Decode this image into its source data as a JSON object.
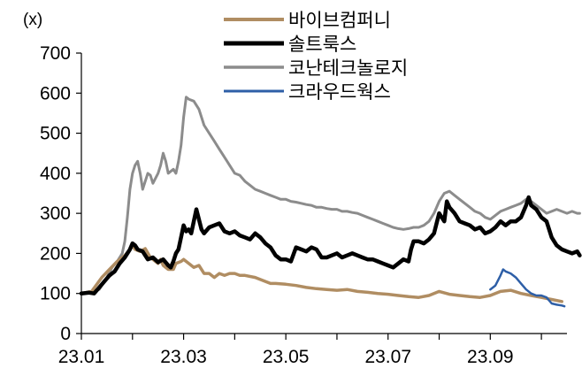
{
  "chart_data": {
    "type": "line",
    "unit_label": "(x)",
    "x_tick_labels": [
      "23.01",
      "23.03",
      "23.05",
      "23.07",
      "23.09"
    ],
    "x_tick_positions": [
      0,
      2,
      4,
      6,
      8
    ],
    "x_range": [
      0,
      9.5
    ],
    "y_tick_labels": [
      "0",
      "100",
      "200",
      "300",
      "400",
      "500",
      "600",
      "700"
    ],
    "ylim": [
      0,
      700
    ],
    "grid": false,
    "legend_position": "top-right",
    "series": [
      {
        "name": "바이브컴퍼니",
        "color": "#B08D62",
        "width": 3.5,
        "points": [
          [
            0,
            100
          ],
          [
            0.2,
            105
          ],
          [
            0.4,
            140
          ],
          [
            0.55,
            160
          ],
          [
            0.7,
            180
          ],
          [
            0.85,
            195
          ],
          [
            0.95,
            210
          ],
          [
            1.0,
            220
          ],
          [
            1.05,
            210
          ],
          [
            1.15,
            205
          ],
          [
            1.25,
            212
          ],
          [
            1.35,
            190
          ],
          [
            1.5,
            175
          ],
          [
            1.55,
            185
          ],
          [
            1.6,
            170
          ],
          [
            1.7,
            160
          ],
          [
            1.8,
            160
          ],
          [
            1.85,
            175
          ],
          [
            1.95,
            180
          ],
          [
            2.0,
            185
          ],
          [
            2.1,
            175
          ],
          [
            2.2,
            165
          ],
          [
            2.3,
            170
          ],
          [
            2.4,
            150
          ],
          [
            2.5,
            150
          ],
          [
            2.6,
            140
          ],
          [
            2.7,
            150
          ],
          [
            2.8,
            145
          ],
          [
            2.9,
            150
          ],
          [
            3.0,
            150
          ],
          [
            3.1,
            145
          ],
          [
            3.2,
            145
          ],
          [
            3.4,
            140
          ],
          [
            3.6,
            130
          ],
          [
            3.7,
            125
          ],
          [
            3.8,
            125
          ],
          [
            4.0,
            123
          ],
          [
            4.2,
            120
          ],
          [
            4.4,
            115
          ],
          [
            4.6,
            112
          ],
          [
            4.8,
            110
          ],
          [
            5.0,
            108
          ],
          [
            5.2,
            110
          ],
          [
            5.4,
            105
          ],
          [
            5.6,
            103
          ],
          [
            5.8,
            100
          ],
          [
            6.0,
            98
          ],
          [
            6.2,
            95
          ],
          [
            6.4,
            92
          ],
          [
            6.6,
            90
          ],
          [
            6.8,
            95
          ],
          [
            7.0,
            105
          ],
          [
            7.2,
            98
          ],
          [
            7.4,
            95
          ],
          [
            7.6,
            92
          ],
          [
            7.8,
            90
          ],
          [
            8.0,
            95
          ],
          [
            8.2,
            105
          ],
          [
            8.4,
            108
          ],
          [
            8.6,
            100
          ],
          [
            8.8,
            95
          ],
          [
            9.0,
            90
          ],
          [
            9.2,
            85
          ],
          [
            9.4,
            80
          ]
        ]
      },
      {
        "name": "솔트룩스",
        "color": "#000000",
        "width": 4.5,
        "points": [
          [
            0,
            100
          ],
          [
            0.15,
            102
          ],
          [
            0.25,
            100
          ],
          [
            0.35,
            115
          ],
          [
            0.45,
            130
          ],
          [
            0.55,
            145
          ],
          [
            0.65,
            155
          ],
          [
            0.75,
            175
          ],
          [
            0.85,
            190
          ],
          [
            0.95,
            210
          ],
          [
            1.0,
            225
          ],
          [
            1.05,
            220
          ],
          [
            1.1,
            210
          ],
          [
            1.2,
            205
          ],
          [
            1.3,
            185
          ],
          [
            1.4,
            190
          ],
          [
            1.5,
            178
          ],
          [
            1.6,
            185
          ],
          [
            1.7,
            170
          ],
          [
            1.75,
            165
          ],
          [
            1.8,
            180
          ],
          [
            1.85,
            200
          ],
          [
            1.9,
            210
          ],
          [
            1.95,
            240
          ],
          [
            2.0,
            270
          ],
          [
            2.05,
            255
          ],
          [
            2.1,
            260
          ],
          [
            2.15,
            250
          ],
          [
            2.2,
            280
          ],
          [
            2.25,
            310
          ],
          [
            2.3,
            285
          ],
          [
            2.35,
            260
          ],
          [
            2.4,
            250
          ],
          [
            2.5,
            265
          ],
          [
            2.6,
            270
          ],
          [
            2.7,
            275
          ],
          [
            2.8,
            255
          ],
          [
            2.9,
            250
          ],
          [
            3.0,
            255
          ],
          [
            3.1,
            245
          ],
          [
            3.2,
            240
          ],
          [
            3.3,
            235
          ],
          [
            3.4,
            250
          ],
          [
            3.5,
            240
          ],
          [
            3.6,
            225
          ],
          [
            3.7,
            215
          ],
          [
            3.8,
            195
          ],
          [
            3.9,
            185
          ],
          [
            4.0,
            185
          ],
          [
            4.1,
            180
          ],
          [
            4.2,
            215
          ],
          [
            4.3,
            210
          ],
          [
            4.4,
            205
          ],
          [
            4.5,
            215
          ],
          [
            4.6,
            210
          ],
          [
            4.7,
            190
          ],
          [
            4.8,
            190
          ],
          [
            4.9,
            195
          ],
          [
            5.0,
            200
          ],
          [
            5.1,
            190
          ],
          [
            5.2,
            195
          ],
          [
            5.3,
            200
          ],
          [
            5.4,
            195
          ],
          [
            5.5,
            190
          ],
          [
            5.6,
            185
          ],
          [
            5.7,
            185
          ],
          [
            5.8,
            180
          ],
          [
            5.9,
            175
          ],
          [
            6.0,
            170
          ],
          [
            6.1,
            165
          ],
          [
            6.2,
            175
          ],
          [
            6.3,
            185
          ],
          [
            6.4,
            180
          ],
          [
            6.45,
            210
          ],
          [
            6.5,
            230
          ],
          [
            6.6,
            230
          ],
          [
            6.7,
            225
          ],
          [
            6.8,
            235
          ],
          [
            6.9,
            250
          ],
          [
            7.0,
            300
          ],
          [
            7.1,
            280
          ],
          [
            7.15,
            330
          ],
          [
            7.2,
            315
          ],
          [
            7.3,
            300
          ],
          [
            7.4,
            280
          ],
          [
            7.5,
            275
          ],
          [
            7.6,
            270
          ],
          [
            7.7,
            260
          ],
          [
            7.8,
            265
          ],
          [
            7.9,
            250
          ],
          [
            8.0,
            255
          ],
          [
            8.1,
            265
          ],
          [
            8.2,
            280
          ],
          [
            8.3,
            270
          ],
          [
            8.4,
            280
          ],
          [
            8.5,
            280
          ],
          [
            8.6,
            290
          ],
          [
            8.7,
            320
          ],
          [
            8.75,
            340
          ],
          [
            8.8,
            320
          ],
          [
            8.9,
            310
          ],
          [
            9.0,
            290
          ],
          [
            9.1,
            280
          ],
          [
            9.2,
            240
          ],
          [
            9.3,
            220
          ],
          [
            9.4,
            210
          ],
          [
            9.5,
            205
          ],
          [
            9.6,
            200
          ],
          [
            9.7,
            205
          ],
          [
            9.75,
            195
          ]
        ]
      },
      {
        "name": "코난테크놀로지",
        "color": "#8C8C8C",
        "width": 3.0,
        "points": [
          [
            0,
            100
          ],
          [
            0.2,
            105
          ],
          [
            0.35,
            110
          ],
          [
            0.5,
            140
          ],
          [
            0.6,
            165
          ],
          [
            0.7,
            180
          ],
          [
            0.8,
            200
          ],
          [
            0.85,
            230
          ],
          [
            0.9,
            290
          ],
          [
            0.95,
            360
          ],
          [
            1.0,
            400
          ],
          [
            1.05,
            420
          ],
          [
            1.1,
            430
          ],
          [
            1.15,
            400
          ],
          [
            1.2,
            360
          ],
          [
            1.25,
            380
          ],
          [
            1.3,
            400
          ],
          [
            1.35,
            395
          ],
          [
            1.4,
            375
          ],
          [
            1.5,
            400
          ],
          [
            1.55,
            420
          ],
          [
            1.6,
            450
          ],
          [
            1.65,
            430
          ],
          [
            1.7,
            400
          ],
          [
            1.8,
            410
          ],
          [
            1.85,
            400
          ],
          [
            1.9,
            430
          ],
          [
            1.95,
            470
          ],
          [
            2.0,
            540
          ],
          [
            2.05,
            590
          ],
          [
            2.1,
            585
          ],
          [
            2.2,
            580
          ],
          [
            2.3,
            560
          ],
          [
            2.4,
            520
          ],
          [
            2.5,
            500
          ],
          [
            2.6,
            480
          ],
          [
            2.7,
            460
          ],
          [
            2.8,
            440
          ],
          [
            2.9,
            420
          ],
          [
            3.0,
            400
          ],
          [
            3.1,
            395
          ],
          [
            3.2,
            380
          ],
          [
            3.3,
            370
          ],
          [
            3.4,
            360
          ],
          [
            3.5,
            355
          ],
          [
            3.6,
            350
          ],
          [
            3.7,
            345
          ],
          [
            3.8,
            340
          ],
          [
            3.9,
            335
          ],
          [
            4.0,
            335
          ],
          [
            4.1,
            330
          ],
          [
            4.2,
            328
          ],
          [
            4.3,
            325
          ],
          [
            4.4,
            322
          ],
          [
            4.5,
            320
          ],
          [
            4.6,
            315
          ],
          [
            4.7,
            315
          ],
          [
            4.8,
            312
          ],
          [
            4.9,
            310
          ],
          [
            5.0,
            310
          ],
          [
            5.1,
            305
          ],
          [
            5.2,
            305
          ],
          [
            5.3,
            302
          ],
          [
            5.4,
            300
          ],
          [
            5.5,
            295
          ],
          [
            5.6,
            290
          ],
          [
            5.7,
            285
          ],
          [
            5.8,
            280
          ],
          [
            5.9,
            275
          ],
          [
            6.0,
            270
          ],
          [
            6.1,
            265
          ],
          [
            6.2,
            262
          ],
          [
            6.3,
            260
          ],
          [
            6.4,
            262
          ],
          [
            6.5,
            265
          ],
          [
            6.6,
            265
          ],
          [
            6.7,
            270
          ],
          [
            6.8,
            280
          ],
          [
            6.9,
            300
          ],
          [
            7.0,
            330
          ],
          [
            7.1,
            350
          ],
          [
            7.2,
            355
          ],
          [
            7.3,
            345
          ],
          [
            7.4,
            335
          ],
          [
            7.5,
            325
          ],
          [
            7.6,
            315
          ],
          [
            7.7,
            305
          ],
          [
            7.8,
            300
          ],
          [
            7.9,
            290
          ],
          [
            8.0,
            285
          ],
          [
            8.1,
            295
          ],
          [
            8.2,
            305
          ],
          [
            8.3,
            310
          ],
          [
            8.4,
            315
          ],
          [
            8.5,
            320
          ],
          [
            8.6,
            325
          ],
          [
            8.7,
            335
          ],
          [
            8.8,
            330
          ],
          [
            8.9,
            320
          ],
          [
            9.0,
            310
          ],
          [
            9.1,
            300
          ],
          [
            9.2,
            305
          ],
          [
            9.3,
            310
          ],
          [
            9.4,
            305
          ],
          [
            9.5,
            300
          ],
          [
            9.6,
            305
          ],
          [
            9.7,
            300
          ],
          [
            9.75,
            300
          ]
        ]
      },
      {
        "name": "크라우드웍스",
        "color": "#2E5FA7",
        "width": 2.5,
        "points": [
          [
            8.0,
            110
          ],
          [
            8.1,
            120
          ],
          [
            8.2,
            145
          ],
          [
            8.25,
            160
          ],
          [
            8.3,
            155
          ],
          [
            8.4,
            150
          ],
          [
            8.5,
            140
          ],
          [
            8.6,
            125
          ],
          [
            8.7,
            110
          ],
          [
            8.8,
            100
          ],
          [
            8.9,
            95
          ],
          [
            9.0,
            95
          ],
          [
            9.1,
            90
          ],
          [
            9.2,
            75
          ],
          [
            9.3,
            72
          ],
          [
            9.4,
            70
          ],
          [
            9.45,
            68
          ]
        ]
      }
    ]
  }
}
